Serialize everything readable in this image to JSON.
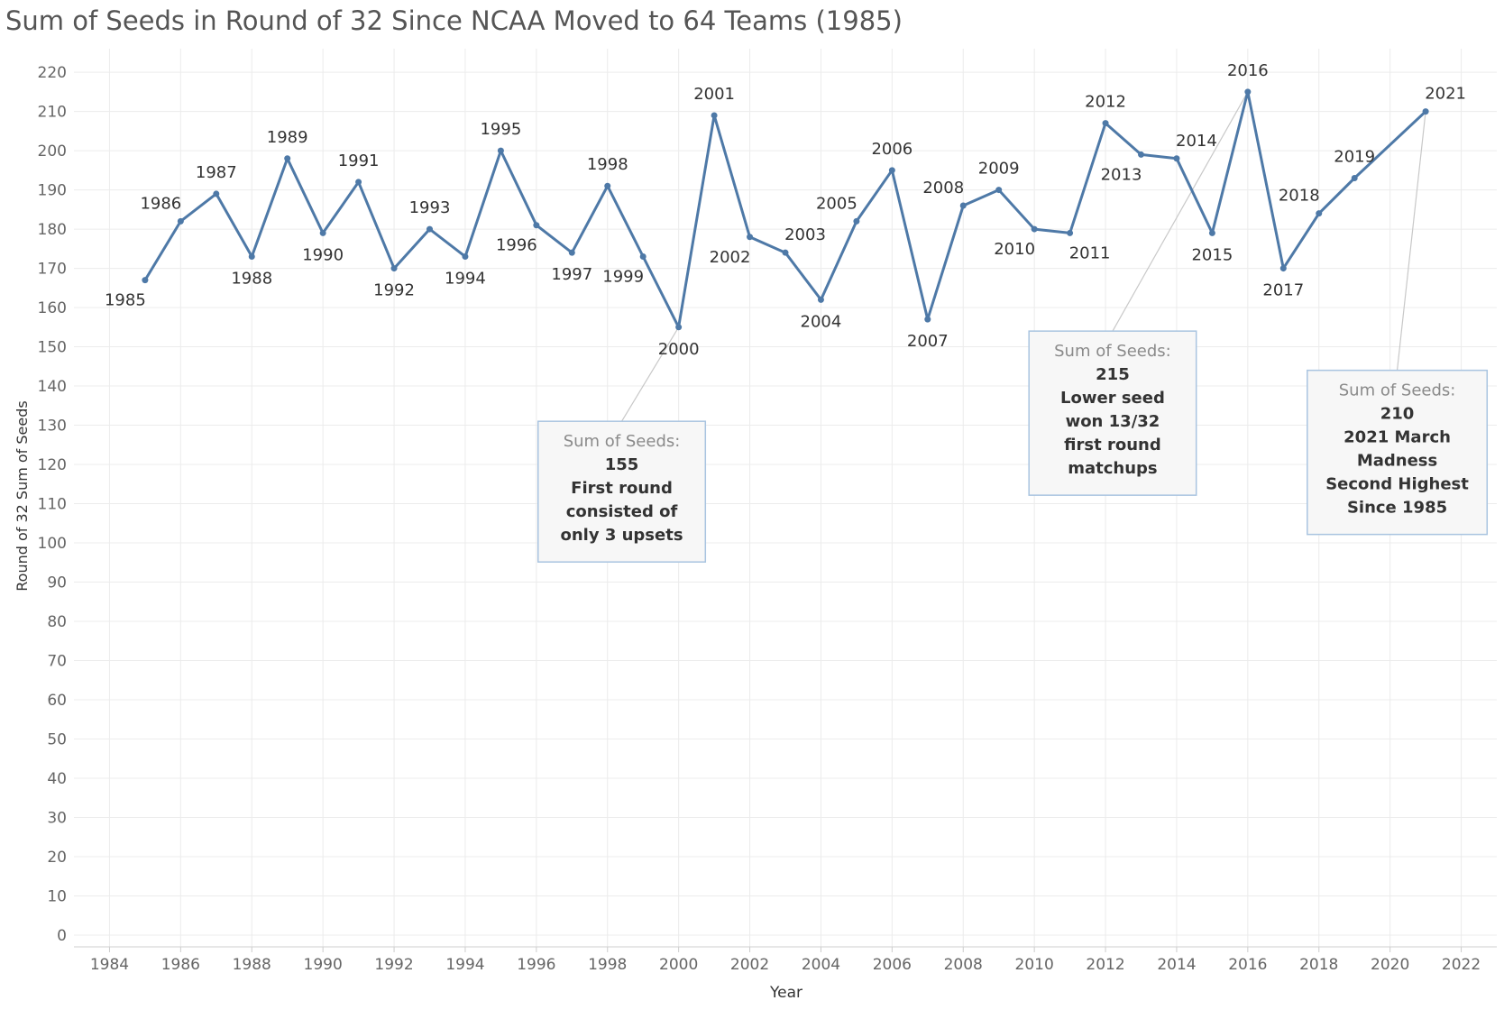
{
  "chart_data": {
    "type": "line",
    "title": "Sum of Seeds in Round of 32 Since NCAA Moved to 64 Teams (1985)",
    "xlabel": "Year",
    "ylabel": "Round of 32 Sum of Seeds",
    "xlim": [
      1983,
      2023
    ],
    "ylim": [
      -3,
      226
    ],
    "x_ticks": [
      1984,
      1986,
      1988,
      1990,
      1992,
      1994,
      1996,
      1998,
      2000,
      2002,
      2004,
      2006,
      2008,
      2010,
      2012,
      2014,
      2016,
      2018,
      2020,
      2022
    ],
    "y_ticks": [
      0,
      10,
      20,
      30,
      40,
      50,
      60,
      70,
      80,
      90,
      100,
      110,
      120,
      130,
      140,
      150,
      160,
      170,
      180,
      190,
      200,
      210,
      220
    ],
    "grid": true,
    "series": [
      {
        "color": "#4e79a7",
        "points": [
          {
            "x": 1985,
            "y": 167,
            "label": "1985",
            "label_pos": "below-left"
          },
          {
            "x": 1986,
            "y": 182,
            "label": "1986",
            "label_pos": "above-left"
          },
          {
            "x": 1987,
            "y": 189,
            "label": "1987",
            "label_pos": "above"
          },
          {
            "x": 1988,
            "y": 173,
            "label": "1988",
            "label_pos": "below"
          },
          {
            "x": 1989,
            "y": 198,
            "label": "1989",
            "label_pos": "above"
          },
          {
            "x": 1990,
            "y": 179,
            "label": "1990",
            "label_pos": "below"
          },
          {
            "x": 1991,
            "y": 192,
            "label": "1991",
            "label_pos": "above"
          },
          {
            "x": 1992,
            "y": 170,
            "label": "1992",
            "label_pos": "below"
          },
          {
            "x": 1993,
            "y": 180,
            "label": "1993",
            "label_pos": "above"
          },
          {
            "x": 1994,
            "y": 173,
            "label": "1994",
            "label_pos": "below"
          },
          {
            "x": 1995,
            "y": 200,
            "label": "1995",
            "label_pos": "above"
          },
          {
            "x": 1996,
            "y": 181,
            "label": "1996",
            "label_pos": "below-left"
          },
          {
            "x": 1997,
            "y": 174,
            "label": "1997",
            "label_pos": "below"
          },
          {
            "x": 1998,
            "y": 191,
            "label": "1998",
            "label_pos": "above"
          },
          {
            "x": 1999,
            "y": 173,
            "label": "1999",
            "label_pos": "below-left"
          },
          {
            "x": 2000,
            "y": 155,
            "label": "2000",
            "label_pos": "below"
          },
          {
            "x": 2001,
            "y": 209,
            "label": "2001",
            "label_pos": "above"
          },
          {
            "x": 2002,
            "y": 178,
            "label": "2002",
            "label_pos": "below-left"
          },
          {
            "x": 2003,
            "y": 174,
            "label": "2003",
            "label_pos": "above-right"
          },
          {
            "x": 2004,
            "y": 162,
            "label": "2004",
            "label_pos": "below"
          },
          {
            "x": 2005,
            "y": 182,
            "label": "2005",
            "label_pos": "above-left"
          },
          {
            "x": 2006,
            "y": 195,
            "label": "2006",
            "label_pos": "above"
          },
          {
            "x": 2007,
            "y": 157,
            "label": "2007",
            "label_pos": "below"
          },
          {
            "x": 2008,
            "y": 186,
            "label": "2008",
            "label_pos": "above-left"
          },
          {
            "x": 2009,
            "y": 190,
            "label": "2009",
            "label_pos": "above"
          },
          {
            "x": 2010,
            "y": 180,
            "label": "2010",
            "label_pos": "below-left"
          },
          {
            "x": 2011,
            "y": 179,
            "label": "2011",
            "label_pos": "below-right"
          },
          {
            "x": 2012,
            "y": 207,
            "label": "2012",
            "label_pos": "above"
          },
          {
            "x": 2013,
            "y": 199,
            "label": "2013",
            "label_pos": "below-left"
          },
          {
            "x": 2014,
            "y": 198,
            "label": "2014",
            "label_pos": "above-right"
          },
          {
            "x": 2015,
            "y": 179,
            "label": "2015",
            "label_pos": "below"
          },
          {
            "x": 2016,
            "y": 215,
            "label": "2016",
            "label_pos": "above"
          },
          {
            "x": 2017,
            "y": 170,
            "label": "2017",
            "label_pos": "below"
          },
          {
            "x": 2018,
            "y": 184,
            "label": "2018",
            "label_pos": "above-left"
          },
          {
            "x": 2019,
            "y": 193,
            "label": "2019",
            "label_pos": "above"
          },
          {
            "x": 2021,
            "y": 210,
            "label": "2021",
            "label_pos": "above-right"
          }
        ]
      }
    ],
    "annotations": [
      {
        "target_x": 2000,
        "target_y": 155,
        "box_x": 1998.4,
        "box_y": 131,
        "header": "Sum of Seeds:",
        "lines": [
          "155",
          "First round",
          "consisted of",
          "only 3 upsets"
        ]
      },
      {
        "target_x": 2016,
        "target_y": 215,
        "box_x": 2012.2,
        "box_y": 154,
        "header": "Sum of Seeds:",
        "lines": [
          "215",
          "Lower seed",
          "won 13/32",
          "first round",
          "matchups"
        ]
      },
      {
        "target_x": 2021,
        "target_y": 210,
        "box_x": 2020.2,
        "box_y": 144,
        "header": "Sum of Seeds:",
        "lines": [
          "210",
          "2021 March",
          "Madness",
          "Second Highest",
          "Since 1985"
        ]
      }
    ]
  }
}
